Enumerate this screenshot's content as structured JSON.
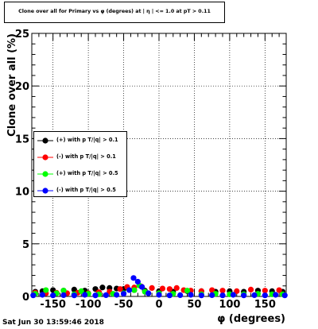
{
  "chart_data": {
    "type": "scatter",
    "title": "Clone  over all for Primary vs φ (degrees) at | η | <= 1.0 at pT > 0.11",
    "xlabel": "φ (degrees)",
    "ylabel": "Clone  over all (%)",
    "xlim": [
      -180,
      180
    ],
    "ylim": [
      0,
      25
    ],
    "x_ticks": [
      -150,
      -100,
      -50,
      0,
      50,
      100,
      150
    ],
    "y_ticks": [
      0,
      5,
      10,
      15,
      20,
      25
    ],
    "grid": true,
    "legend_position": "middle-left",
    "series": [
      {
        "name": "(+) with p T/|q| > 0.1",
        "color": "#000000",
        "marker": "circle",
        "points": [
          [
            -175,
            0.45
          ],
          [
            -165,
            0.5
          ],
          [
            -150,
            0.6
          ],
          [
            -135,
            0.55
          ],
          [
            -120,
            0.65
          ],
          [
            -105,
            0.55
          ],
          [
            -90,
            0.7
          ],
          [
            -80,
            0.85
          ],
          [
            -70,
            0.8
          ],
          [
            -60,
            0.75
          ],
          [
            -50,
            0.7
          ],
          [
            -35,
            0.6
          ],
          [
            -20,
            0.55
          ],
          [
            0,
            0.5
          ],
          [
            20,
            0.45
          ],
          [
            40,
            0.5
          ],
          [
            60,
            0.5
          ],
          [
            80,
            0.45
          ],
          [
            100,
            0.5
          ],
          [
            120,
            0.45
          ],
          [
            140,
            0.55
          ],
          [
            160,
            0.5
          ],
          [
            175,
            0.45
          ]
        ]
      },
      {
        "name": "(-) with p T/|q| > 0.1",
        "color": "#ff0000",
        "marker": "circle",
        "points": [
          [
            -175,
            0.35
          ],
          [
            -160,
            0.3
          ],
          [
            -145,
            0.35
          ],
          [
            -130,
            0.3
          ],
          [
            -115,
            0.35
          ],
          [
            -100,
            0.3
          ],
          [
            -85,
            0.4
          ],
          [
            -70,
            0.45
          ],
          [
            -55,
            0.7
          ],
          [
            -45,
            0.9
          ],
          [
            -35,
            0.85
          ],
          [
            -25,
            0.95
          ],
          [
            -10,
            0.8
          ],
          [
            5,
            0.75
          ],
          [
            15,
            0.7
          ],
          [
            25,
            0.8
          ],
          [
            35,
            0.6
          ],
          [
            45,
            0.55
          ],
          [
            60,
            0.5
          ],
          [
            75,
            0.6
          ],
          [
            90,
            0.55
          ],
          [
            110,
            0.5
          ],
          [
            130,
            0.65
          ],
          [
            150,
            0.55
          ],
          [
            170,
            0.6
          ]
        ]
      },
      {
        "name": "(+) with p T/|q| > 0.5",
        "color": "#00ff00",
        "marker": "circle",
        "points": [
          [
            -175,
            0.25
          ],
          [
            -160,
            0.6
          ],
          [
            -145,
            0.3
          ],
          [
            -135,
            0.55
          ],
          [
            -120,
            0.2
          ],
          [
            -110,
            0.5
          ],
          [
            -100,
            0.25
          ],
          [
            -85,
            0.2
          ],
          [
            -65,
            0.25
          ],
          [
            -50,
            0.3
          ],
          [
            -35,
            0.6
          ],
          [
            -28,
            1.05
          ],
          [
            -20,
            0.45
          ],
          [
            0,
            0.3
          ],
          [
            20,
            0.25
          ],
          [
            40,
            0.55
          ],
          [
            60,
            0.2
          ],
          [
            80,
            0.25
          ],
          [
            100,
            0.2
          ],
          [
            120,
            0.2
          ],
          [
            140,
            0.25
          ],
          [
            160,
            0.2
          ],
          [
            175,
            0.2
          ]
        ]
      },
      {
        "name": "(-) with p T/|q| > 0.5",
        "color": "#0000ff",
        "marker": "circle",
        "points": [
          [
            -178,
            0.1
          ],
          [
            -165,
            0.15
          ],
          [
            -150,
            0.1
          ],
          [
            -135,
            0.12
          ],
          [
            -120,
            0.1
          ],
          [
            -105,
            0.15
          ],
          [
            -90,
            0.1
          ],
          [
            -75,
            0.12
          ],
          [
            -60,
            0.15
          ],
          [
            -50,
            0.25
          ],
          [
            -42,
            0.6
          ],
          [
            -36,
            1.75
          ],
          [
            -30,
            1.4
          ],
          [
            -24,
            0.9
          ],
          [
            -15,
            0.3
          ],
          [
            0,
            0.15
          ],
          [
            15,
            0.1
          ],
          [
            30,
            0.12
          ],
          [
            45,
            0.15
          ],
          [
            60,
            0.1
          ],
          [
            75,
            0.12
          ],
          [
            90,
            0.1
          ],
          [
            105,
            0.15
          ],
          [
            120,
            0.1
          ],
          [
            135,
            0.12
          ],
          [
            150,
            0.1
          ],
          [
            165,
            0.15
          ],
          [
            178,
            0.1
          ]
        ]
      }
    ]
  },
  "footer_timestamp": "Sat Jun 30 13:59:46 2018"
}
